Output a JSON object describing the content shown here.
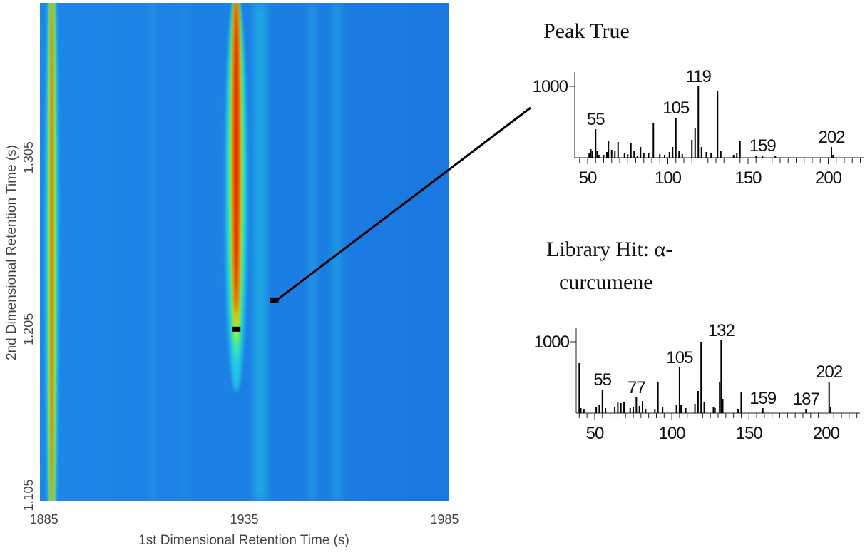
{
  "chart_data": [
    {
      "type": "heatmap",
      "xlabel": "1st Dimensional Retention Time (s)",
      "ylabel": "2nd Dimensional Retention Time (s)",
      "x_ticks": [
        "1885",
        "1935",
        "1985"
      ],
      "y_ticks": [
        "1.105",
        "1.205",
        "1.305"
      ],
      "xlim": [
        1884,
        1986
      ],
      "ylim": [
        1.105,
        1.395
      ],
      "colormap": [
        "#1e78e6",
        "#23c8e6",
        "#3cf0a0",
        "#c8f000",
        "#f0a000",
        "#e61400"
      ],
      "peaks": [
        {
          "x": 1887,
          "y_center": 1.25,
          "intensity": 0.75,
          "x_width": 1.2,
          "y_width": 0.2
        },
        {
          "x": 1933,
          "y_center": 1.215,
          "intensity": 1.0,
          "x_width": 1.6,
          "y_width": 0.04
        }
      ],
      "markers": [
        {
          "x": 1933,
          "y": 1.205
        },
        {
          "x": 1942.5,
          "y": 1.222
        }
      ]
    },
    {
      "type": "bar",
      "title": "Peak True",
      "x_ticks": [
        50,
        100,
        150,
        200
      ],
      "y_ticks": [
        1000
      ],
      "xlim": [
        42,
        222
      ],
      "ylim": [
        0,
        1200
      ],
      "labels": [
        {
          "mz": 55,
          "text": "55"
        },
        {
          "mz": 105,
          "text": "105"
        },
        {
          "mz": 119,
          "text": "119"
        },
        {
          "mz": 159,
          "text": "159"
        },
        {
          "mz": 202,
          "text": "202"
        }
      ],
      "x": [
        51,
        52,
        53,
        55,
        56,
        57,
        60,
        62,
        63,
        65,
        67,
        69,
        73,
        75,
        77,
        79,
        81,
        83,
        85,
        88,
        91,
        95,
        98,
        101,
        103,
        105,
        107,
        109,
        115,
        117,
        119,
        121,
        124,
        127,
        131,
        133,
        141,
        143,
        145,
        155,
        159,
        167,
        202,
        203
      ],
      "y": [
        60,
        120,
        90,
        400,
        100,
        40,
        40,
        80,
        230,
        110,
        90,
        220,
        60,
        50,
        210,
        100,
        30,
        150,
        60,
        60,
        490,
        50,
        40,
        80,
        150,
        560,
        90,
        50,
        250,
        420,
        1000,
        150,
        80,
        60,
        940,
        90,
        40,
        70,
        230,
        30,
        30,
        20,
        150,
        40
      ]
    },
    {
      "type": "bar",
      "title": "Library Hit: α-curcumene",
      "x_ticks": [
        50,
        100,
        150,
        200
      ],
      "y_ticks": [
        1000
      ],
      "xlim": [
        38,
        222
      ],
      "ylim": [
        0,
        1200
      ],
      "labels": [
        {
          "mz": 55,
          "text": "55"
        },
        {
          "mz": 77,
          "text": "77"
        },
        {
          "mz": 105,
          "text": "105"
        },
        {
          "mz": 132,
          "text": "132"
        },
        {
          "mz": 159,
          "text": "159"
        },
        {
          "mz": 187,
          "text": "187"
        },
        {
          "mz": 202,
          "text": "202"
        }
      ],
      "x": [
        40,
        41,
        43,
        51,
        53,
        55,
        57,
        63,
        65,
        67,
        69,
        73,
        75,
        77,
        79,
        81,
        83,
        89,
        91,
        94,
        103,
        105,
        106,
        109,
        115,
        117,
        119,
        121,
        127,
        128,
        131,
        132,
        133,
        143,
        145,
        159,
        187,
        202,
        203
      ],
      "y": [
        700,
        70,
        60,
        80,
        110,
        330,
        70,
        90,
        160,
        140,
        160,
        70,
        80,
        220,
        100,
        170,
        60,
        60,
        440,
        80,
        120,
        640,
        110,
        70,
        130,
        310,
        1000,
        160,
        90,
        70,
        430,
        1020,
        200,
        60,
        300,
        70,
        60,
        440,
        80
      ]
    }
  ]
}
